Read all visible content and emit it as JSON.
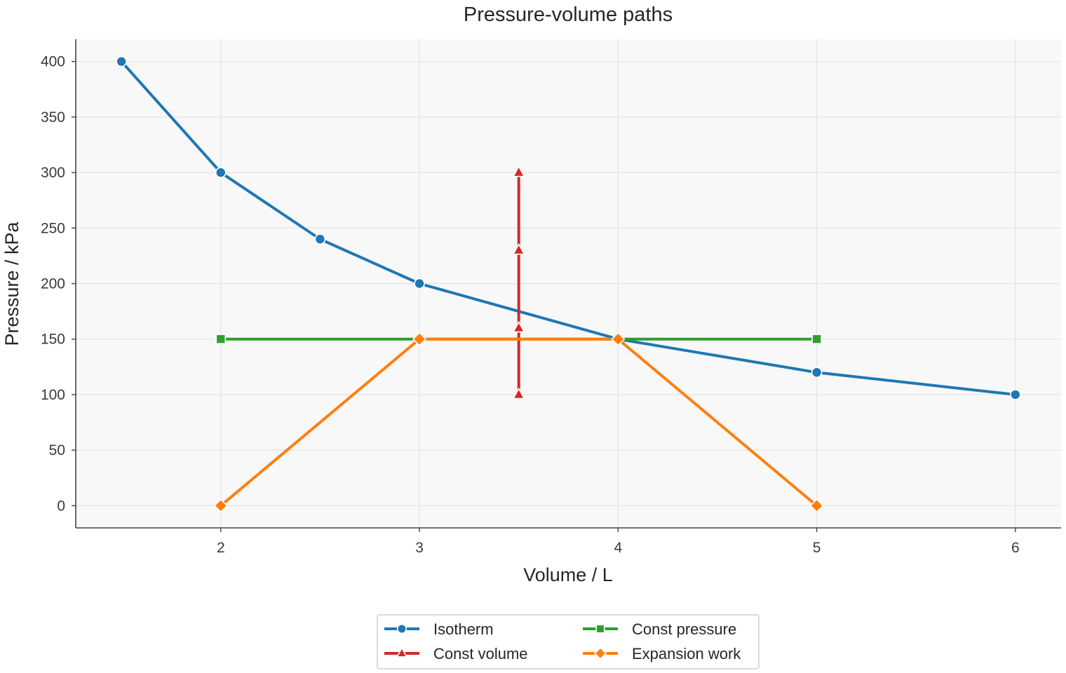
{
  "chart_data": {
    "type": "line",
    "title": "Pressure-volume paths",
    "xlabel": "Volume / L",
    "ylabel": "Pressure / kPa",
    "xlim": [
      1.27,
      6.23
    ],
    "ylim": [
      -20,
      420
    ],
    "xticks": [
      2,
      3,
      4,
      5,
      6
    ],
    "yticks": [
      0,
      50,
      100,
      150,
      200,
      250,
      300,
      350,
      400
    ],
    "grid": true,
    "legend": {
      "position": "bottom-center",
      "columns": 2
    },
    "series": [
      {
        "name": "Isotherm",
        "color": "#1f77b4",
        "marker": "circle",
        "points": [
          [
            1.5,
            400
          ],
          [
            2,
            300
          ],
          [
            2.5,
            240
          ],
          [
            3,
            200
          ],
          [
            4,
            150
          ],
          [
            5,
            120
          ],
          [
            6,
            100
          ]
        ]
      },
      {
        "name": "Const pressure",
        "color": "#2ca02c",
        "marker": "square",
        "points": [
          [
            2,
            150
          ],
          [
            3,
            150
          ],
          [
            4,
            150
          ],
          [
            5,
            150
          ]
        ]
      },
      {
        "name": "Const volume",
        "color": "#d62728",
        "marker": "triangle",
        "points": [
          [
            3.5,
            100
          ],
          [
            3.5,
            160
          ],
          [
            3.5,
            230
          ],
          [
            3.5,
            300
          ]
        ]
      },
      {
        "name": "Expansion work",
        "color": "#ff7f0e",
        "marker": "diamond",
        "points": [
          [
            2,
            0
          ],
          [
            3,
            150
          ],
          [
            4,
            150
          ],
          [
            5,
            0
          ]
        ]
      }
    ]
  }
}
